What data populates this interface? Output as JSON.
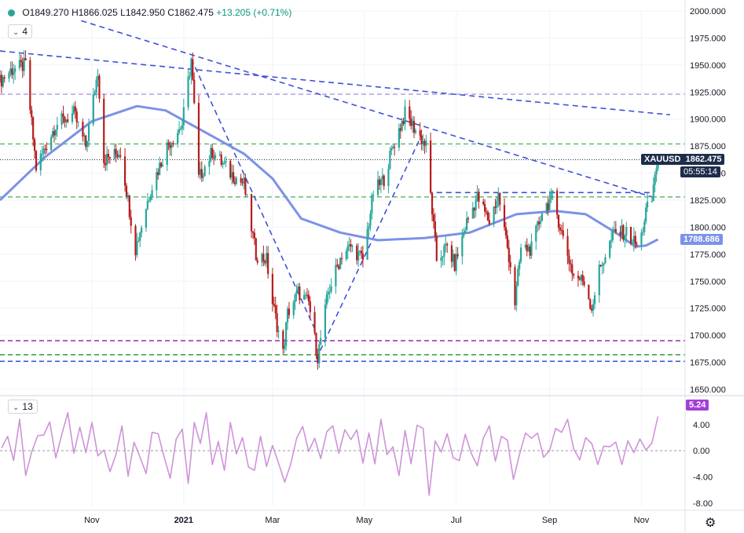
{
  "header": {
    "ohlc_open": "O1849.270",
    "ohlc_high": "H1866.025",
    "ohlc_low": "L1842.950",
    "ohlc_close": "C1862.475",
    "ohlc_change": "+13.205 (+0.71%)",
    "main_pane_label": "4",
    "osc_pane_label": "13"
  },
  "colors": {
    "up": "#26a69a",
    "down": "#b71c1c",
    "trend": "#3f51d8",
    "ma": "#7b92e8",
    "green_level": "#2e9e3e",
    "purple_level": "#9c27b0",
    "osc": "#ce93d8"
  },
  "price_tags": {
    "symbol": "XAUUSD",
    "last": "1862.475",
    "countdown": "05:55:14",
    "ma_value": "1788.686",
    "osc_value": "5.24"
  },
  "chart_data": [
    {
      "type": "candlestick",
      "title": "XAUUSD",
      "y_ticks": [
        "2000.000",
        "1975.000",
        "1950.000",
        "1925.000",
        "1900.000",
        "1875.000",
        "1850.000",
        "1825.000",
        "1800.000",
        "1775.000",
        "1750.000",
        "1725.000",
        "1700.000",
        "1675.000",
        "1650.000"
      ],
      "ylim": [
        1650,
        2000
      ],
      "x_ticks": [
        "Nov",
        "2021",
        "Mar",
        "May",
        "Jul",
        "Sep",
        "Nov"
      ],
      "x_tick_dates": [
        "2020-11-01",
        "2021-01-01",
        "2021-03-01",
        "2021-05-01",
        "2021-07-01",
        "2021-09-01",
        "2021-11-01"
      ],
      "xlim": [
        "2020-09-01",
        "2021-11-30"
      ],
      "price_path": [
        [
          "2020-09-01",
          1935
        ],
        [
          "2020-09-08",
          1945
        ],
        [
          "2020-09-18",
          1950
        ],
        [
          "2020-09-25",
          1855
        ],
        [
          "2020-10-08",
          1895
        ],
        [
          "2020-10-20",
          1905
        ],
        [
          "2020-10-28",
          1875
        ],
        [
          "2020-11-05",
          1945
        ],
        [
          "2020-11-09",
          1862
        ],
        [
          "2020-11-20",
          1870
        ],
        [
          "2020-11-30",
          1780
        ],
        [
          "2020-12-10",
          1835
        ],
        [
          "2020-12-21",
          1875
        ],
        [
          "2020-12-31",
          1895
        ],
        [
          "2021-01-06",
          1955
        ],
        [
          "2021-01-11",
          1845
        ],
        [
          "2021-01-20",
          1870
        ],
        [
          "2021-02-01",
          1850
        ],
        [
          "2021-02-10",
          1840
        ],
        [
          "2021-02-18",
          1775
        ],
        [
          "2021-02-25",
          1770
        ],
        [
          "2021-03-01",
          1730
        ],
        [
          "2021-03-08",
          1683
        ],
        [
          "2021-03-11",
          1720
        ],
        [
          "2021-03-18",
          1740
        ],
        [
          "2021-03-25",
          1730
        ],
        [
          "2021-03-31",
          1680
        ],
        [
          "2021-04-07",
          1740
        ],
        [
          "2021-04-16",
          1775
        ],
        [
          "2021-04-22",
          1782
        ],
        [
          "2021-04-30",
          1770
        ],
        [
          "2021-05-07",
          1832
        ],
        [
          "2021-05-14",
          1845
        ],
        [
          "2021-05-20",
          1875
        ],
        [
          "2021-05-28",
          1905
        ],
        [
          "2021-06-04",
          1890
        ],
        [
          "2021-06-11",
          1875
        ],
        [
          "2021-06-18",
          1770
        ],
        [
          "2021-06-25",
          1782
        ],
        [
          "2021-06-30",
          1765
        ],
        [
          "2021-07-08",
          1805
        ],
        [
          "2021-07-15",
          1828
        ],
        [
          "2021-07-23",
          1805
        ],
        [
          "2021-07-29",
          1830
        ],
        [
          "2021-08-06",
          1765
        ],
        [
          "2021-08-09",
          1730
        ],
        [
          "2021-08-13",
          1780
        ],
        [
          "2021-08-20",
          1780
        ],
        [
          "2021-08-27",
          1815
        ],
        [
          "2021-09-03",
          1828
        ],
        [
          "2021-09-10",
          1790
        ],
        [
          "2021-09-17",
          1755
        ],
        [
          "2021-09-24",
          1750
        ],
        [
          "2021-09-29",
          1725
        ],
        [
          "2021-10-04",
          1760
        ],
        [
          "2021-10-14",
          1795
        ],
        [
          "2021-10-22",
          1795
        ],
        [
          "2021-10-29",
          1783
        ],
        [
          "2021-11-01",
          1792
        ],
        [
          "2021-11-04",
          1815
        ],
        [
          "2021-11-08",
          1825
        ],
        [
          "2021-11-10",
          1850
        ],
        [
          "2021-11-12",
          1862.475
        ]
      ],
      "moving_average": [
        [
          "2020-09-01",
          1825
        ],
        [
          "2020-10-01",
          1865
        ],
        [
          "2020-11-01",
          1898
        ],
        [
          "2020-12-01",
          1912
        ],
        [
          "2020-12-20",
          1908
        ],
        [
          "2021-01-15",
          1888
        ],
        [
          "2021-02-10",
          1868
        ],
        [
          "2021-03-01",
          1845
        ],
        [
          "2021-03-20",
          1808
        ],
        [
          "2021-04-15",
          1795
        ],
        [
          "2021-05-10",
          1788
        ],
        [
          "2021-06-10",
          1790
        ],
        [
          "2021-07-10",
          1795
        ],
        [
          "2021-08-10",
          1812
        ],
        [
          "2021-09-05",
          1815
        ],
        [
          "2021-09-25",
          1812
        ],
        [
          "2021-10-15",
          1795
        ],
        [
          "2021-10-28",
          1782
        ],
        [
          "2021-11-04",
          1783
        ],
        [
          "2021-11-12",
          1788.686
        ]
      ],
      "trendlines": [
        {
          "from": [
            "2020-09-01",
            1963
          ],
          "to": [
            "2021-11-20",
            1904
          ]
        },
        {
          "from": [
            "2020-10-25",
            1991
          ],
          "to": [
            "2021-11-08",
            1828
          ]
        },
        {
          "from": [
            "2021-01-06",
            1956
          ],
          "to": [
            "2021-03-30",
            1703
          ]
        },
        {
          "from": [
            "2021-03-30",
            1678
          ],
          "to": [
            "2021-06-08",
            1885
          ]
        },
        {
          "from": [
            "2021-06-18",
            1832
          ],
          "to": [
            "2021-11-08",
            1832
          ]
        }
      ],
      "horizontal_levels": [
        {
          "value": 1923,
          "color": "#b39ddb"
        },
        {
          "value": 1877,
          "color": "#66bb6a"
        },
        {
          "value": 1828,
          "color": "#66bb6a"
        },
        {
          "value": 1695,
          "color": "#9c27b0"
        },
        {
          "value": 1682,
          "color": "#2e9e3e"
        },
        {
          "value": 1676,
          "color": "#3f51d8"
        }
      ],
      "last_price": 1862.475,
      "ma_last": 1788.686
    },
    {
      "type": "line",
      "y_ticks": [
        "4.00",
        "0.00",
        "-4.00",
        "-8.00"
      ],
      "ylim": [
        -8.5,
        6.5
      ],
      "zero_line": 0,
      "values": [
        0.4,
        2.2,
        -1.5,
        4.8,
        -3.8,
        -0.2,
        2.3,
        2.4,
        4.4,
        -1.1,
        2.5,
        5.8,
        -0.4,
        3.6,
        -0.3,
        4.3,
        -0.8,
        0.1,
        -3.2,
        -0.6,
        3.8,
        -3.9,
        1.3,
        -1.0,
        -3.5,
        2.8,
        2.6,
        -1.0,
        -4.2,
        1.8,
        3.3,
        -5.0,
        4.3,
        1.1,
        5.8,
        -2.1,
        1.4,
        -3.0,
        4.3,
        -0.5,
        2.0,
        -2.5,
        -3.0,
        2.2,
        -2.4,
        0.8,
        -1.9,
        -4.8,
        -2.1,
        1.9,
        3.7,
        -0.1,
        1.9,
        -1.2,
        2.9,
        3.8,
        -0.4,
        3.2,
        1.7,
        3.2,
        -1.9,
        2.7,
        -2.0,
        4.8,
        -0.6,
        0.6,
        -3.8,
        3.1,
        -2.0,
        3.9,
        3.4,
        -6.8,
        1.5,
        -0.2,
        2.6,
        -1.1,
        -1.5,
        2.5,
        -0.4,
        -2.3,
        1.9,
        3.8,
        -1.6,
        2.2,
        1.6,
        -4.4,
        -0.6,
        2.7,
        1.9,
        2.7,
        -1.0,
        0.0,
        3.4,
        2.8,
        4.8,
        0.3,
        -1.4,
        2.0,
        1.1,
        -2.1,
        0.7,
        0.6,
        1.3,
        -2.1,
        1.5,
        -0.3,
        1.8,
        0.1,
        1.2,
        5.24
      ],
      "last": 5.24
    }
  ]
}
